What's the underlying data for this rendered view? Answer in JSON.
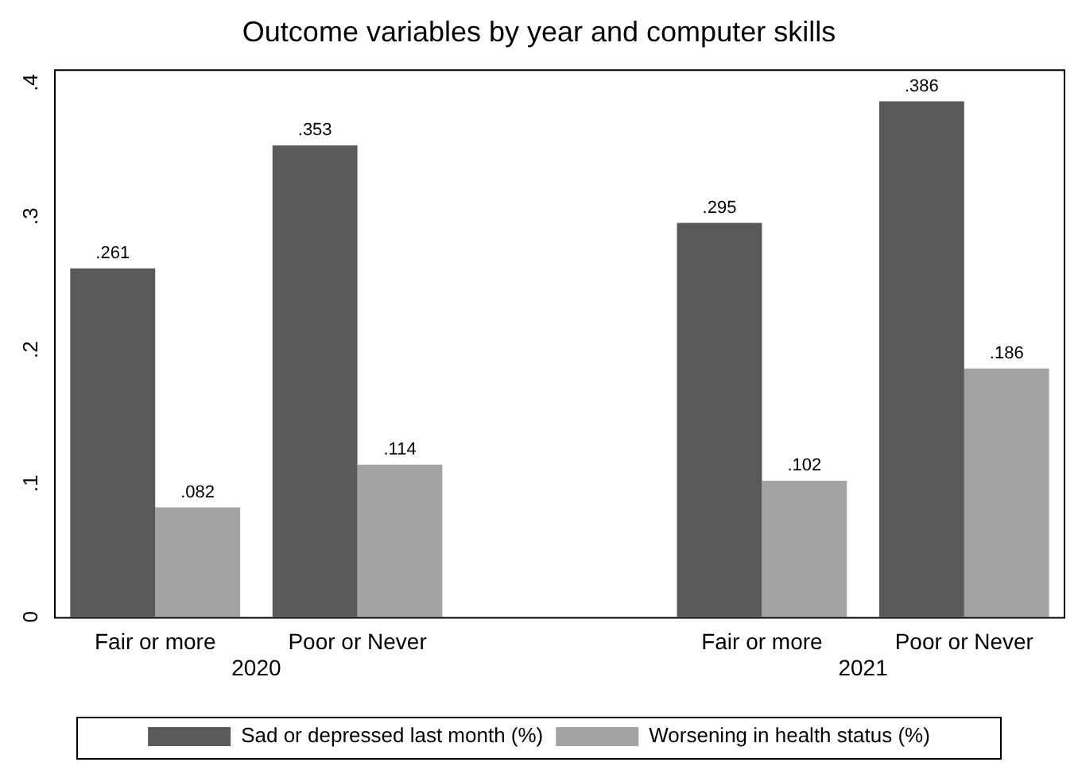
{
  "chart_data": {
    "type": "bar",
    "title": "Outcome variables by year and computer skills",
    "categories": [
      "Fair or more",
      "Poor or Never",
      null,
      "Fair or more",
      "Poor or Never"
    ],
    "series": [
      {
        "name": "Sad or depressed last month (%)",
        "color": "#595959",
        "values": [
          0.261,
          0.353,
          null,
          0.295,
          0.386
        ],
        "value_labels": [
          ".261",
          ".353",
          null,
          ".295",
          ".386"
        ]
      },
      {
        "name": "Worsening in health status (%)",
        "color": "#a3a3a3",
        "values": [
          0.082,
          0.114,
          null,
          0.102,
          0.186
        ],
        "value_labels": [
          ".082",
          ".114",
          null,
          ".102",
          ".186"
        ]
      }
    ],
    "ylim": [
      0,
      0.41
    ],
    "yticks": [
      {
        "value": 0,
        "label": "0"
      },
      {
        "value": 0.1,
        "label": ".1"
      },
      {
        "value": 0.2,
        "label": ".2"
      },
      {
        "value": 0.3,
        "label": ".3"
      },
      {
        "value": 0.4,
        "label": ".4"
      }
    ],
    "annotations": [
      "2020",
      "2021"
    ],
    "grid": false,
    "legend": "bottom"
  }
}
